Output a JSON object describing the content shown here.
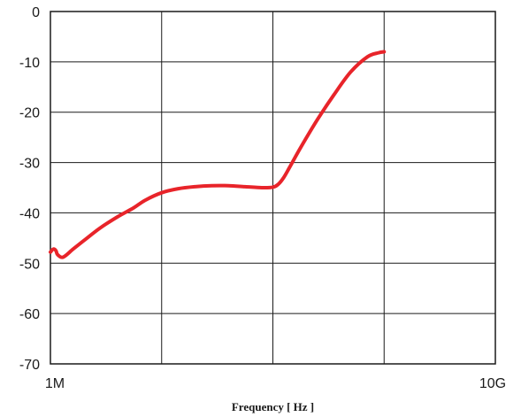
{
  "chart_data": {
    "type": "line",
    "title": "",
    "xlabel": "Frequency [ Hz ]",
    "ylabel": "",
    "x_scale": "log",
    "xlim": [
      1000000,
      10000000000
    ],
    "ylim": [
      -70,
      0
    ],
    "grid": true,
    "x_tick_values": [
      1000000,
      10000000,
      100000000,
      1000000000,
      10000000000
    ],
    "x_tick_labels": [
      "1M",
      "",
      "",
      "",
      "10G"
    ],
    "y_ticks": [
      0,
      -10,
      -20,
      -30,
      -40,
      -50,
      -60,
      -70
    ],
    "y_tick_labels": [
      "0",
      "-10",
      "-20",
      "-30",
      "-40",
      "-50",
      "-60",
      "-70"
    ],
    "series": [
      {
        "color": "#e8242a",
        "x": [
          1000000,
          1060000,
          1120000,
          1160000,
          1300000,
          1600000,
          2000000,
          2800000,
          4000000,
          5600000,
          7100000,
          10000000,
          14100000,
          20000000,
          28200000,
          39800000,
          56200000,
          79400000,
          100000000,
          112000000,
          125000000,
          141000000,
          178000000,
          251000000,
          355000000,
          501000000,
          708000000,
          891000000,
          1000000000
        ],
        "values": [
          -47.8,
          -47.2,
          -47.5,
          -48.3,
          -48.8,
          -47.2,
          -45.5,
          -43,
          -40.8,
          -39,
          -37.5,
          -36,
          -35.2,
          -34.8,
          -34.6,
          -34.6,
          -34.8,
          -35,
          -34.9,
          -34.3,
          -33,
          -31,
          -27,
          -21.5,
          -16.5,
          -12,
          -9,
          -8.2,
          -8
        ]
      }
    ]
  }
}
